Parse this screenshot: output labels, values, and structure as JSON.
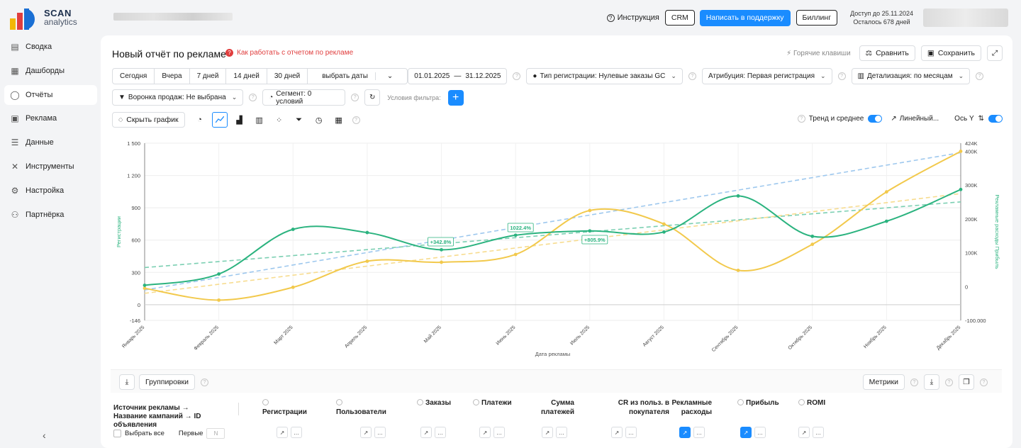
{
  "app": {
    "logo_line1": "SCAN",
    "logo_line2": "analytics"
  },
  "topbar": {
    "instructions": "Инструкция",
    "crm": "CRM",
    "support": "Написать в поддержку",
    "billing": "Биллинг",
    "access_line1": "Доступ до 25.11.2024",
    "access_line2": "Осталось 678 дней"
  },
  "sidebar": {
    "items": [
      {
        "label": "Сводка",
        "icon": "summary-icon"
      },
      {
        "label": "Дашборды",
        "icon": "dashboard-icon"
      },
      {
        "label": "Отчёты",
        "icon": "reports-icon"
      },
      {
        "label": "Реклама",
        "icon": "ads-icon"
      },
      {
        "label": "Данные",
        "icon": "database-icon"
      },
      {
        "label": "Инструменты",
        "icon": "tools-icon"
      },
      {
        "label": "Настройка",
        "icon": "settings-icon"
      },
      {
        "label": "Партнёрка",
        "icon": "partner-icon"
      }
    ],
    "active_index": 2
  },
  "page": {
    "title": "Новый отчёт по рекламе",
    "help": "Как работать с отчетом по рекламе",
    "hotkeys": "Горячие клавиши",
    "compare": "Сравнить",
    "save": "Сохранить"
  },
  "filters": {
    "periods": [
      "Сегодня",
      "Вчера",
      "7 дней",
      "14 дней",
      "30 дней"
    ],
    "choose_dates": "выбрать даты",
    "date_from": "01.01.2025",
    "date_sep": "—",
    "date_to": "31.12.2025",
    "reg_type": "Тип регистрации: Нулевые заказы GC",
    "attribution": "Атрибуция: Первая регистрация",
    "detail": "Детализация:  по месяцам",
    "funnel": "Воронка продаж: Не выбрана",
    "segment": "Сегмент: 0 условий",
    "filter_conditions": "Условия фильтра:"
  },
  "tools": {
    "hide_chart": "Скрыть график",
    "trend": "Тренд и среднее",
    "linear": "Линейный...",
    "axis_y": "Ось Y"
  },
  "chart_data": {
    "type": "line",
    "xlabel": "Дата рекламы",
    "ylabel_left": "Регистрации",
    "ylabel_right": "Рекламные расходы  Прибыль",
    "categories": [
      "Январь 2025",
      "Февраль 2025",
      "Март 2025",
      "Апрель 2025",
      "Май 2025",
      "Июнь 2025",
      "Июль 2025",
      "Август 2025",
      "Сентябрь 2025",
      "Октябрь 2025",
      "Ноябрь 2025",
      "Декабрь 2025"
    ],
    "left_ticks": [
      "1 500",
      "1 200",
      "900",
      "600",
      "300",
      "0",
      "-146"
    ],
    "right_ticks": [
      "424K",
      "400K",
      "300K",
      "200K",
      "100K",
      "0",
      "-100.000"
    ],
    "ylim_left": [
      -146,
      1500
    ],
    "ylim_right": [
      -100000,
      424000
    ],
    "series": [
      {
        "name": "Регистрации",
        "axis": "left",
        "color": "#2bb37f",
        "values": [
          180,
          285,
          700,
          670,
          510,
          645,
          685,
          675,
          1010,
          635,
          775,
          1070
        ]
      },
      {
        "name": "Прибыль",
        "axis": "right",
        "color": "#f2c94c",
        "values": [
          -5000,
          -40000,
          -2000,
          75000,
          72000,
          95000,
          225000,
          185000,
          48000,
          125000,
          280000,
          400000
        ]
      }
    ],
    "trend_lines": [
      {
        "color": "#9ec8ee",
        "from": -10000,
        "to": 396000,
        "axis": "right"
      },
      {
        "color": "#7bcfb2",
        "from": 345,
        "to": 955,
        "axis": "left"
      },
      {
        "color": "#f7dc8f",
        "from": -20000,
        "to": 275000,
        "axis": "right"
      }
    ],
    "annotations": [
      {
        "text": "+342.8%",
        "x_index": 4
      },
      {
        "text": "1022.4%",
        "x_index": 5
      },
      {
        "text": "+805.9%",
        "x_index": 6
      }
    ]
  },
  "table": {
    "groupings": "Группировки",
    "metrics": "Метрики",
    "source_header": "Источник рекламы → Название кампаний → ID объявления",
    "select_all": "Выбрать все",
    "first": "Первые",
    "first_placeholder": "N",
    "columns": [
      "Регистрации",
      "Пользователи",
      "Заказы",
      "Платежи",
      "Сумма платежей",
      "CR из польз. в покупателя",
      "Рекламные расходы",
      "Прибыль",
      "ROMI"
    ]
  }
}
